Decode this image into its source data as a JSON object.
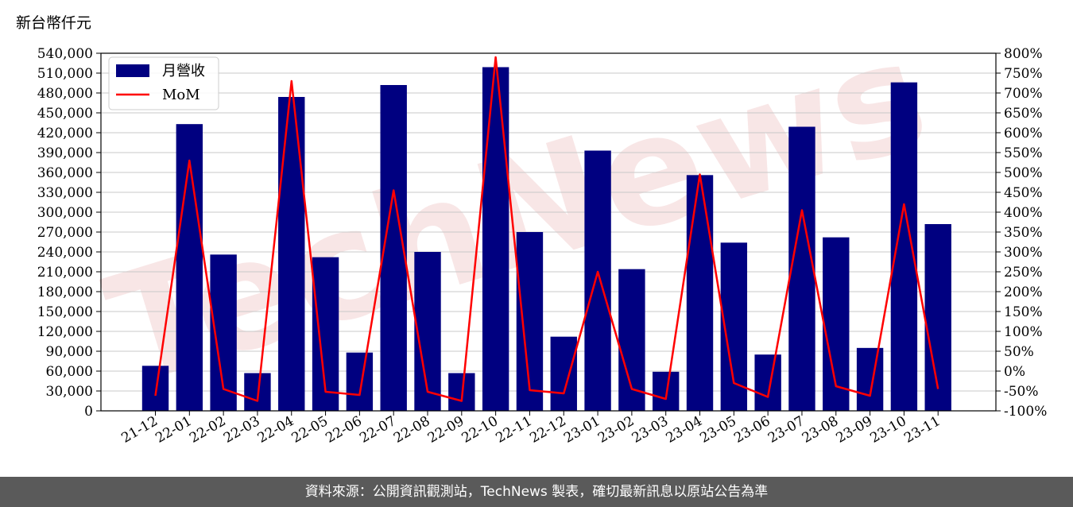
{
  "unit_label": "新台幣仟元",
  "footer_text": "資料來源：公開資訊觀測站，TechNews 製表，確切最新訊息以原站公告為準",
  "watermark_text": "TechNews",
  "colors": {
    "bar": "#000080",
    "line": "#ff0000",
    "grid": "#c8c8c8"
  },
  "chart_data": {
    "type": "bar",
    "title": "",
    "xlabel": "",
    "ylabel": "",
    "categories": [
      "21-12",
      "22-01",
      "22-02",
      "22-03",
      "22-04",
      "22-05",
      "22-06",
      "22-07",
      "22-08",
      "22-09",
      "22-10",
      "22-11",
      "22-12",
      "23-01",
      "23-02",
      "23-03",
      "23-04",
      "23-05",
      "23-06",
      "23-07",
      "23-08",
      "23-09",
      "23-10",
      "23-11"
    ],
    "series": [
      {
        "name": "月營收",
        "type": "bar",
        "axis": "left",
        "values": [
          68000,
          433000,
          236000,
          57000,
          474000,
          232000,
          88000,
          492000,
          240000,
          57000,
          519000,
          270000,
          112000,
          393000,
          214000,
          59000,
          356000,
          254000,
          85000,
          429000,
          262000,
          95000,
          496000,
          282000
        ]
      },
      {
        "name": "MoM",
        "type": "line",
        "axis": "right",
        "values": [
          -62,
          530,
          -45,
          -75,
          730,
          -52,
          -60,
          455,
          -52,
          -75,
          790,
          -48,
          -56,
          250,
          -45,
          -70,
          495,
          -30,
          -65,
          405,
          -38,
          -62,
          420,
          -45
        ]
      }
    ],
    "y_left": {
      "range": [
        0,
        540000
      ],
      "ticks": [
        "0",
        "30,000",
        "60,000",
        "90,000",
        "120,000",
        "150,000",
        "180,000",
        "210,000",
        "240,000",
        "270,000",
        "300,000",
        "330,000",
        "360,000",
        "390,000",
        "420,000",
        "450,000",
        "480,000",
        "510,000",
        "540,000"
      ]
    },
    "y_right": {
      "range": [
        -100,
        800
      ],
      "ticks": [
        "-100%",
        "-50%",
        "0%",
        "50%",
        "100%",
        "150%",
        "200%",
        "250%",
        "300%",
        "350%",
        "400%",
        "450%",
        "500%",
        "550%",
        "600%",
        "650%",
        "700%",
        "750%",
        "800%"
      ]
    },
    "grid": true,
    "legend": "top-left"
  }
}
